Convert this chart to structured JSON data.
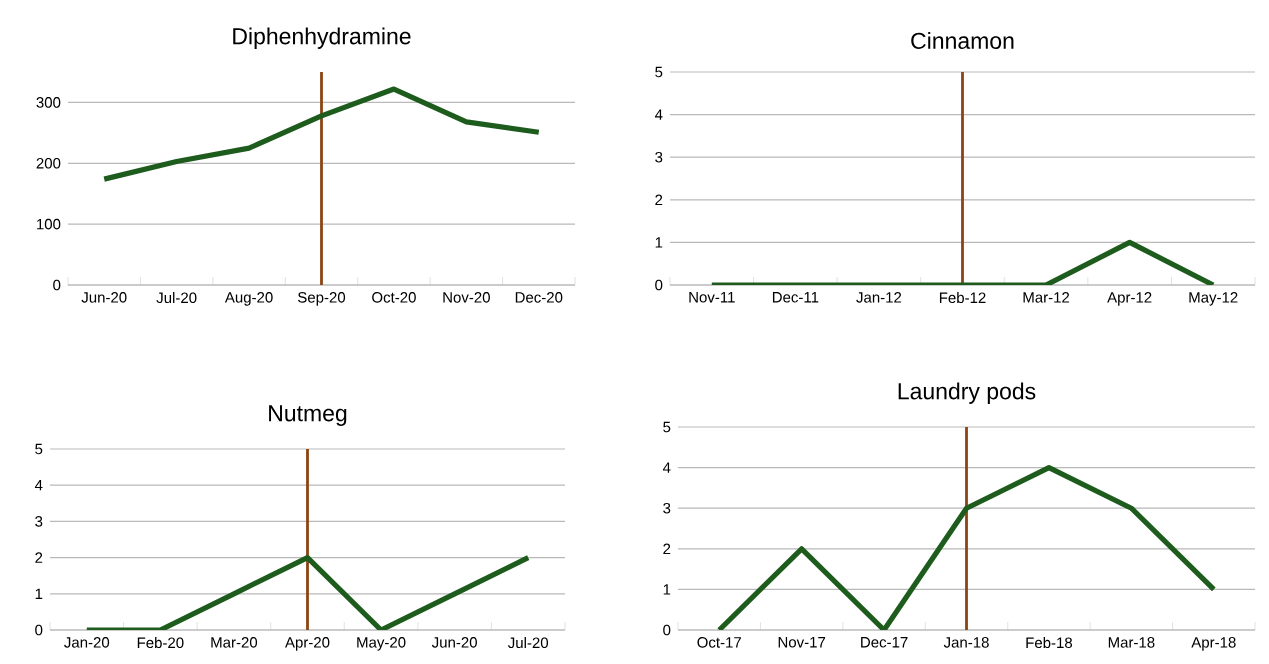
{
  "chart_data": [
    {
      "type": "line",
      "title": "Diphenhydramine",
      "categories": [
        "Jun-20",
        "Jul-20",
        "Aug-20",
        "Sep-20",
        "Oct-20",
        "Nov-20",
        "Dec-20"
      ],
      "series": [
        {
          "color": "#1e5c1e",
          "values": [
            174,
            203,
            225,
            278,
            322,
            268,
            251
          ]
        }
      ],
      "ylim": [
        0,
        350
      ],
      "yticks": [
        0,
        100,
        200,
        300
      ],
      "grid": "y",
      "marker": "none",
      "line_style": "solid",
      "ref_lines": [
        {
          "axis": "x",
          "value": "Sep-20",
          "color": "#8b4513"
        }
      ]
    },
    {
      "type": "line",
      "title": "Cinnamon",
      "categories": [
        "Nov-11",
        "Dec-11",
        "Jan-12",
        "Feb-12",
        "Mar-12",
        "Apr-12",
        "May-12"
      ],
      "series": [
        {
          "color": "#1e5c1e",
          "values": [
            0,
            0,
            0,
            0,
            0,
            1,
            0
          ]
        }
      ],
      "ylim": [
        0,
        5
      ],
      "yticks": [
        0,
        1,
        2,
        3,
        4,
        5
      ],
      "grid": "y",
      "marker": "none",
      "line_style": "solid",
      "ref_lines": [
        {
          "axis": "x",
          "value": "Feb-12",
          "color": "#8b4513"
        }
      ]
    },
    {
      "type": "line",
      "title": "Nutmeg",
      "categories": [
        "Jan-20",
        "Feb-20",
        "Mar-20",
        "Apr-20",
        "May-20",
        "Jun-20",
        "Jul-20"
      ],
      "series": [
        {
          "color": "#1e5c1e",
          "values": [
            0,
            0,
            1,
            2,
            0,
            1,
            2
          ]
        }
      ],
      "ylim": [
        0,
        5
      ],
      "yticks": [
        0,
        1,
        2,
        3,
        4,
        5
      ],
      "grid": "y",
      "marker": "none",
      "line_style": "solid",
      "ref_lines": [
        {
          "axis": "x",
          "value": "Apr-20",
          "color": "#8b4513"
        }
      ]
    },
    {
      "type": "line",
      "title": "Laundry pods",
      "categories": [
        "Oct-17",
        "Nov-17",
        "Dec-17",
        "Jan-18",
        "Feb-18",
        "Mar-18",
        "Apr-18"
      ],
      "series": [
        {
          "color": "#1e5c1e",
          "values": [
            0,
            2,
            0,
            3,
            4,
            3,
            1
          ]
        }
      ],
      "ylim": [
        0,
        5
      ],
      "yticks": [
        0,
        1,
        2,
        3,
        4,
        5
      ],
      "grid": "y",
      "marker": "none",
      "line_style": "solid",
      "ref_lines": [
        {
          "axis": "x",
          "value": "Jan-18",
          "color": "#8b4513"
        }
      ]
    }
  ]
}
